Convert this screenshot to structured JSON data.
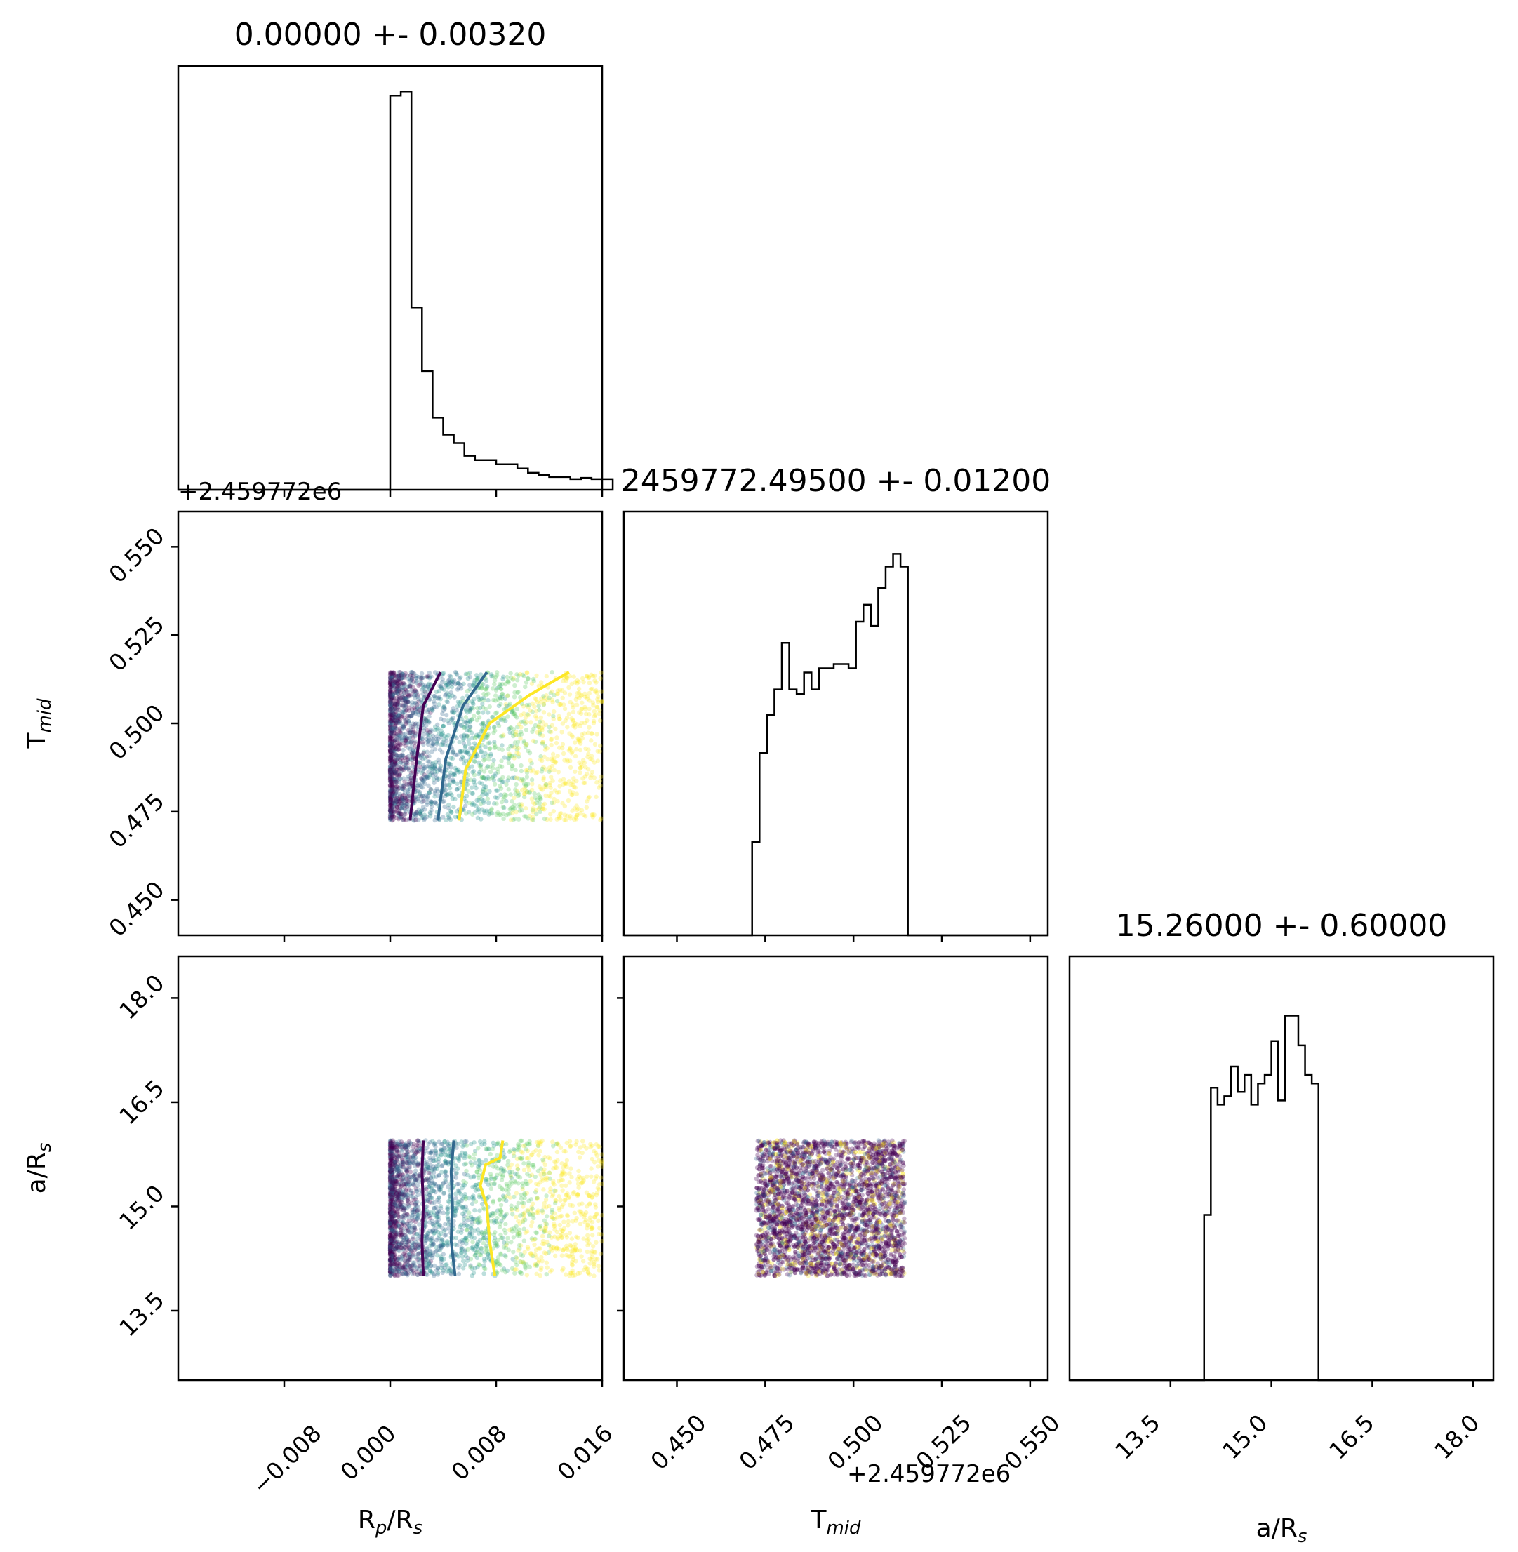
{
  "chart_data": [
    {
      "type": "histogram",
      "panel": "Rp/Rs marginal",
      "title": "0.00000 +- 0.00320",
      "xlabel": "",
      "xlim": [
        -0.016,
        0.016
      ],
      "bins": {
        "start": 0.0,
        "width": 0.0008
      },
      "counts": [
        0.93,
        0.94,
        0.43,
        0.28,
        0.17,
        0.13,
        0.11,
        0.08,
        0.07,
        0.07,
        0.06,
        0.06,
        0.05,
        0.04,
        0.035,
        0.03,
        0.03,
        0.025,
        0.028,
        0.025,
        0.025
      ]
    },
    {
      "type": "scatter",
      "panel": "Tmid vs Rp/Rs",
      "x_offset": "+2.459772e6",
      "ylabel": "T_mid",
      "xlim": [
        -0.016,
        0.016
      ],
      "ylim": [
        0.44,
        0.56
      ],
      "points": {
        "x_range": [
          0.0,
          0.016
        ],
        "y_range": [
          0.4725,
          0.5145
        ],
        "density": "decreasing in x"
      },
      "contours": [
        {
          "color": "#440154",
          "line": [
            [
              0.0015,
              0.4725
            ],
            [
              0.002,
              0.49
            ],
            [
              0.0025,
              0.505
            ],
            [
              0.0038,
              0.5145
            ]
          ]
        },
        {
          "color": "#31688e",
          "line": [
            [
              0.0036,
              0.4725
            ],
            [
              0.0042,
              0.49
            ],
            [
              0.0055,
              0.505
            ],
            [
              0.0073,
              0.5145
            ]
          ]
        },
        {
          "color": "#fde725",
          "line": [
            [
              0.0052,
              0.4725
            ],
            [
              0.0057,
              0.487
            ],
            [
              0.0075,
              0.5
            ],
            [
              0.0105,
              0.508
            ],
            [
              0.0135,
              0.5145
            ]
          ]
        }
      ]
    },
    {
      "type": "histogram",
      "panel": "Tmid marginal",
      "title": "2459772.49500 +- 0.01200",
      "xlabel": "",
      "xlim": [
        0.435,
        0.555
      ],
      "bins": {
        "start": 0.4713,
        "width": 0.0021
      },
      "counts": [
        0.22,
        0.43,
        0.52,
        0.58,
        0.69,
        0.58,
        0.57,
        0.62,
        0.58,
        0.63,
        0.63,
        0.64,
        0.64,
        0.63,
        0.74,
        0.78,
        0.73,
        0.82,
        0.87,
        0.9,
        0.87
      ]
    },
    {
      "type": "scatter",
      "panel": "a/Rs vs Rp/Rs",
      "ylabel": "a/R_s",
      "xlim": [
        -0.016,
        0.016
      ],
      "ylim": [
        12.5,
        18.6
      ],
      "points": {
        "x_range": [
          0.0,
          0.016
        ],
        "y_range": [
          14.0,
          15.95
        ]
      },
      "contours": [
        {
          "color": "#440154",
          "line": [
            [
              0.0025,
              14.0
            ],
            [
              0.0024,
              14.5
            ],
            [
              0.0025,
              15.0
            ],
            [
              0.0024,
              15.5
            ],
            [
              0.0025,
              15.95
            ]
          ]
        },
        {
          "color": "#31688e",
          "line": [
            [
              0.0049,
              14.0
            ],
            [
              0.0046,
              14.5
            ],
            [
              0.0047,
              15.0
            ],
            [
              0.0046,
              15.5
            ],
            [
              0.0048,
              15.95
            ]
          ]
        },
        {
          "color": "#fde725",
          "line": [
            [
              0.0079,
              14.0
            ],
            [
              0.0075,
              14.5
            ],
            [
              0.0073,
              15.0
            ],
            [
              0.0068,
              15.3
            ],
            [
              0.0072,
              15.6
            ],
            [
              0.0083,
              15.7
            ],
            [
              0.0085,
              15.95
            ]
          ]
        }
      ]
    },
    {
      "type": "scatter",
      "panel": "a/Rs vs Tmid",
      "x_offset": "+2.459772e6",
      "xlabel": "T_mid",
      "xlim": [
        0.435,
        0.555
      ],
      "ylim": [
        12.5,
        18.6
      ],
      "points": {
        "x_range": [
          0.4725,
          0.5145
        ],
        "y_range": [
          14.0,
          15.95
        ]
      }
    },
    {
      "type": "histogram",
      "panel": "a/Rs marginal",
      "title": "15.26000 +- 0.60000",
      "xlabel": "a/R_s",
      "xlim": [
        12.0,
        18.3
      ],
      "bins": {
        "start": 14.0,
        "width": 0.1
      },
      "counts": [
        0.39,
        0.69,
        0.65,
        0.67,
        0.74,
        0.68,
        0.72,
        0.65,
        0.7,
        0.72,
        0.8,
        0.66,
        0.86,
        0.86,
        0.79,
        0.72,
        0.7
      ]
    }
  ],
  "axes_labels": {
    "x_rp": "R",
    "x_rp_sub": "p",
    "x_rp_mid": "/R",
    "x_rp_sub2": "s",
    "x_t": "T",
    "x_t_sub": "mid",
    "x_a": "a/R",
    "x_a_sub": "s",
    "y_t": "T",
    "y_t_sub": "mid",
    "y_a": "a/R",
    "y_a_sub": "s"
  },
  "ticks": {
    "rp": [
      "−0.008",
      "0.000",
      "0.008",
      "0.016"
    ],
    "t": [
      "0.450",
      "0.475",
      "0.500",
      "0.525",
      "0.550"
    ],
    "a": [
      "13.5",
      "15.0",
      "16.5",
      "18.0"
    ]
  },
  "offset_text": {
    "top": "+2.459772e6",
    "bottom": "+2.459772e6"
  },
  "colors": {
    "purple": "#440154",
    "blue": "#31688e",
    "teal": "#21918c",
    "green": "#5ec962",
    "yellow": "#fde725"
  }
}
